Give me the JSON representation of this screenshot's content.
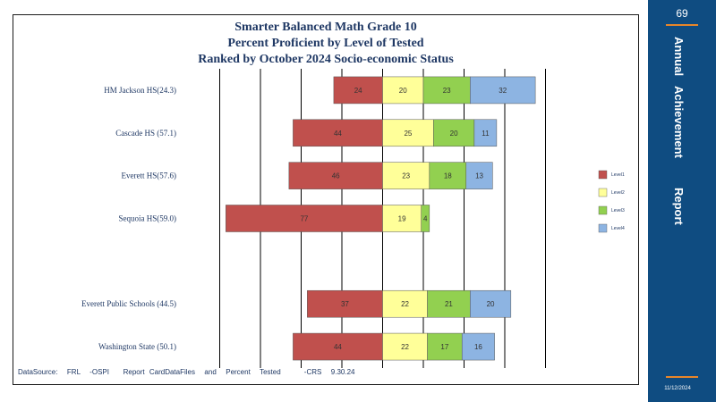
{
  "chart_data": {
    "type": "bar",
    "stacked": true,
    "orientation": "horizontal",
    "title_lines": [
      "Smarter Balanced Math Grade 10",
      "Percent Proficient by Level of Tested",
      "Ranked by October 2024 Socio-economic  Status"
    ],
    "categories": [
      "HM Jackson HS(24.3)",
      "Cascade HS (57.1)",
      "Everett  HS(57.6)",
      "Sequoia HS(59.0)",
      "",
      "Everett  Public Schools (44.5)",
      "Washington State  (50.1)"
    ],
    "series": [
      {
        "name": "Level1",
        "color": "#c0504d",
        "values": [
          24,
          44,
          46,
          77,
          null,
          37,
          44
        ]
      },
      {
        "name": "Level2",
        "color": "#ffff99",
        "values": [
          20,
          25,
          23,
          19,
          null,
          22,
          22
        ]
      },
      {
        "name": "Level3",
        "color": "#92d050",
        "values": [
          23,
          20,
          18,
          4,
          null,
          21,
          17
        ]
      },
      {
        "name": "Level4",
        "color": "#8db4e2",
        "values": [
          32,
          11,
          13,
          null,
          null,
          20,
          16
        ]
      }
    ],
    "xlim": [
      -100,
      100
    ],
    "diverging_at": "Level1|Level2",
    "grid": true,
    "legend_position": "right"
  },
  "source_note": "DataSource:  FRL  -OSPI   Report CardDataFiles  and  Percent  Tested     -CRS  9.30.24",
  "sidebar": {
    "page_number": "69",
    "words": [
      "Annual",
      "Achievement",
      "Report"
    ],
    "footer_date": "11/12/2024",
    "background": "#0f4c81",
    "accent": "#e8862a"
  }
}
